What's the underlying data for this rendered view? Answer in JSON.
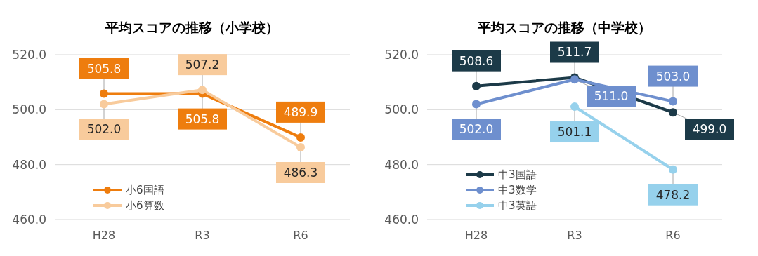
{
  "chart_data": [
    {
      "type": "line",
      "title": "平均スコアの推移（小学校）",
      "categories": [
        "H28",
        "R3",
        "R6"
      ],
      "ylim": [
        460,
        520
      ],
      "yticks": [
        {
          "value": 460,
          "label": "460.0"
        },
        {
          "value": 480,
          "label": "480.0"
        },
        {
          "value": 500,
          "label": "500.0"
        },
        {
          "value": 520,
          "label": "520.0"
        }
      ],
      "grid": "y",
      "legend": "bottom left",
      "marker": "circle",
      "series": [
        {
          "name": "小6国語",
          "color": "#ee7d0e",
          "values": [
            505.8,
            505.8,
            489.9
          ],
          "value_labels": [
            "505.8",
            "505.8",
            "489.9"
          ]
        },
        {
          "name": "小6算数",
          "color": "#f8cb9c",
          "values": [
            502.0,
            507.2,
            486.3
          ],
          "value_labels": [
            "502.0",
            "507.2",
            "486.3"
          ]
        }
      ]
    },
    {
      "type": "line",
      "title": "平均スコアの推移（中学校）",
      "categories": [
        "H28",
        "R3",
        "R6"
      ],
      "ylim": [
        460,
        520
      ],
      "yticks": [
        {
          "value": 460,
          "label": "460.0"
        },
        {
          "value": 480,
          "label": "480.0"
        },
        {
          "value": 500,
          "label": "500.0"
        },
        {
          "value": 520,
          "label": "520.0"
        }
      ],
      "grid": "y",
      "legend": "bottom left",
      "marker": "circle",
      "series": [
        {
          "name": "中3国語",
          "color": "#1c3a48",
          "values": [
            508.6,
            511.7,
            499.0
          ],
          "value_labels": [
            "508.6",
            "511.7",
            "499.0"
          ]
        },
        {
          "name": "中3数学",
          "color": "#6e8fce",
          "values": [
            502.0,
            511.0,
            503.0
          ],
          "value_labels": [
            "502.0",
            "511.0",
            "503.0"
          ]
        },
        {
          "name": "中3英語",
          "color": "#96d1ec",
          "values": [
            null,
            501.1,
            478.2
          ],
          "value_labels": [
            null,
            "501.1",
            "478.2"
          ]
        }
      ]
    }
  ]
}
